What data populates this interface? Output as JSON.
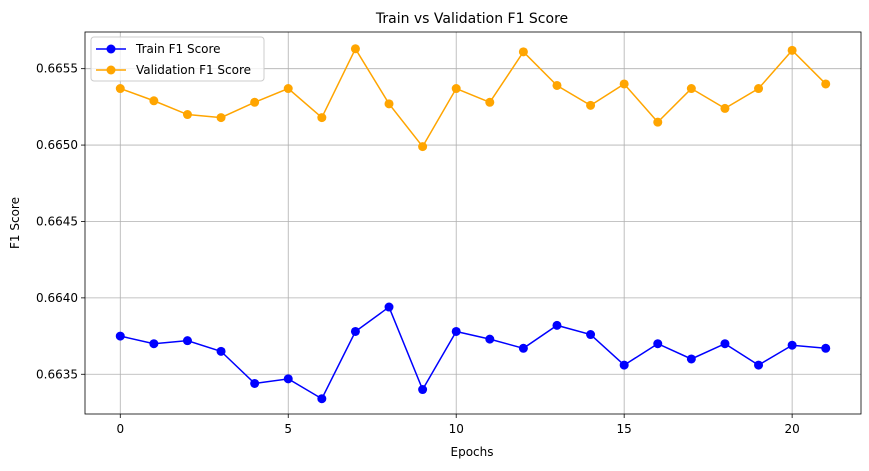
{
  "chart_data": {
    "type": "line",
    "title": "Train vs Validation F1 Score",
    "xlabel": "Epochs",
    "ylabel": "F1 Score",
    "xlim": [
      -1.05,
      22.05
    ],
    "ylim": [
      0.66324,
      0.66574
    ],
    "grid": true,
    "legend_position": "top-left",
    "x": [
      0,
      1,
      2,
      3,
      4,
      5,
      6,
      7,
      8,
      9,
      10,
      11,
      12,
      13,
      14,
      15,
      16,
      17,
      18,
      19,
      20,
      21
    ],
    "x_ticks": [
      0,
      5,
      10,
      15,
      20
    ],
    "x_tick_labels": [
      "0",
      "5",
      "10",
      "15",
      "20"
    ],
    "y_ticks": [
      0.6635,
      0.664,
      0.6645,
      0.665,
      0.6655
    ],
    "y_tick_labels": [
      "0.6635",
      "0.6640",
      "0.6645",
      "0.6650",
      "0.6655"
    ],
    "series": [
      {
        "name": "Train F1 Score",
        "color": "#0000ff",
        "values": [
          0.66375,
          0.6637,
          0.66372,
          0.66365,
          0.66344,
          0.66347,
          0.66334,
          0.66378,
          0.66394,
          0.6634,
          0.66378,
          0.66373,
          0.66367,
          0.66382,
          0.66376,
          0.66356,
          0.6637,
          0.6636,
          0.6637,
          0.66356,
          0.66369,
          0.66367
        ]
      },
      {
        "name": "Validation F1 Score",
        "color": "#ffa500",
        "values": [
          0.66537,
          0.66529,
          0.6652,
          0.66518,
          0.66528,
          0.66537,
          0.66518,
          0.66563,
          0.66527,
          0.66499,
          0.66537,
          0.66528,
          0.66561,
          0.66539,
          0.66526,
          0.6654,
          0.66515,
          0.66537,
          0.66524,
          0.66537,
          0.66562,
          0.6654
        ]
      }
    ]
  }
}
